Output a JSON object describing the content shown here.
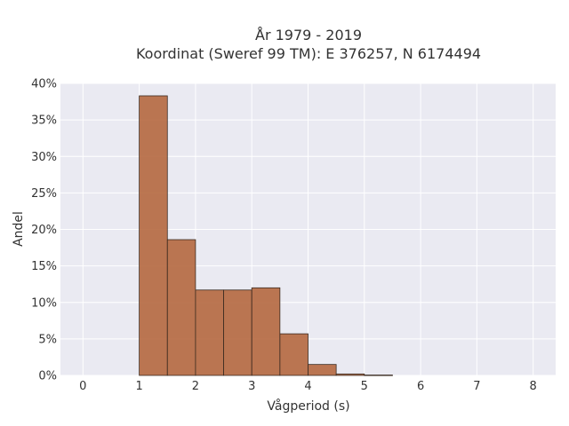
{
  "chart_data": {
    "type": "bar",
    "title": [
      "År 1979 - 2019",
      "Koordinat (Sweref 99 TM): E 376257, N 6174494"
    ],
    "xlabel": "Vågperiod (s)",
    "ylabel": "Andel",
    "xlim": [
      -0.4,
      8.4
    ],
    "ylim": [
      0,
      40
    ],
    "x_ticks": [
      0,
      1,
      2,
      3,
      4,
      5,
      6,
      7,
      8
    ],
    "y_ticks": [
      0,
      5,
      10,
      15,
      20,
      25,
      30,
      35,
      40
    ],
    "y_tick_labels": [
      "0%",
      "5%",
      "10%",
      "15%",
      "20%",
      "25%",
      "30%",
      "35%",
      "40%"
    ],
    "bin_width": 0.5,
    "bins": [
      {
        "x0": 1.0,
        "x1": 1.5,
        "value": 38.3
      },
      {
        "x0": 1.5,
        "x1": 2.0,
        "value": 18.6
      },
      {
        "x0": 2.0,
        "x1": 2.5,
        "value": 11.7
      },
      {
        "x0": 2.5,
        "x1": 3.0,
        "value": 11.7
      },
      {
        "x0": 3.0,
        "x1": 3.5,
        "value": 12.0
      },
      {
        "x0": 3.5,
        "x1": 4.0,
        "value": 5.7
      },
      {
        "x0": 4.0,
        "x1": 4.5,
        "value": 1.5
      },
      {
        "x0": 4.5,
        "x1": 5.0,
        "value": 0.2
      },
      {
        "x0": 5.0,
        "x1": 5.5,
        "value": 0.05
      }
    ],
    "grid": true,
    "bar_color": "#b5683f",
    "plot_background": "#eaeaf2"
  }
}
